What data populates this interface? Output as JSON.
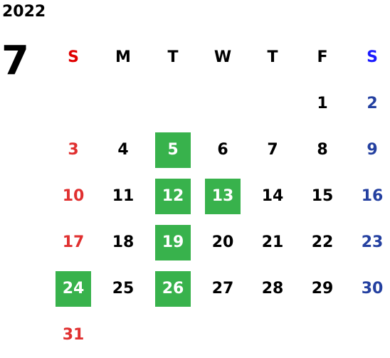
{
  "year": "2022",
  "month": "7",
  "weekdays": [
    {
      "label": "S",
      "kind": "sun"
    },
    {
      "label": "M",
      "kind": ""
    },
    {
      "label": "T",
      "kind": ""
    },
    {
      "label": "W",
      "kind": ""
    },
    {
      "label": "T",
      "kind": ""
    },
    {
      "label": "F",
      "kind": ""
    },
    {
      "label": "S",
      "kind": "sat"
    }
  ],
  "first_weekday_index": 5,
  "days_in_month": 31,
  "highlighted_days": [
    5,
    12,
    13,
    19,
    24,
    26
  ],
  "colors": {
    "sunday_header": "#e00000",
    "saturday_header": "#1a1aff",
    "sunday_day": "#e03030",
    "saturday_day": "#2440a0",
    "highlight": "#38b24c"
  }
}
